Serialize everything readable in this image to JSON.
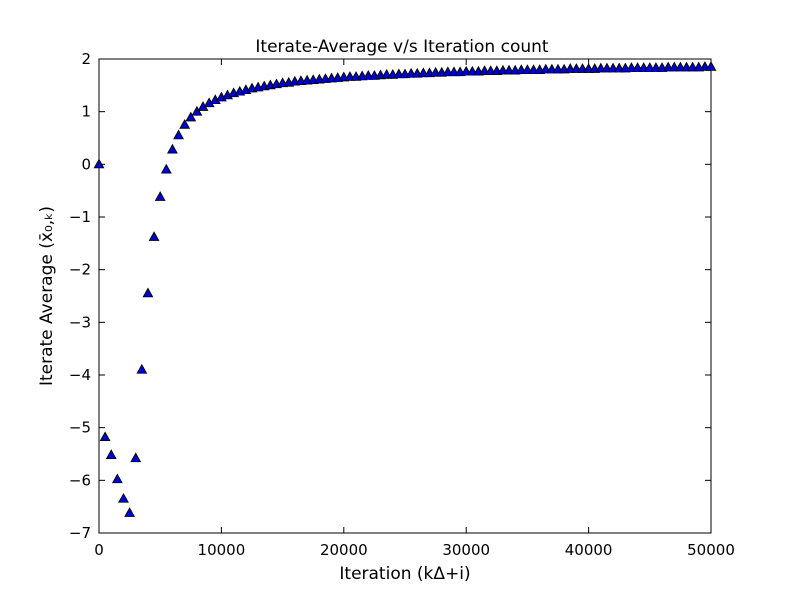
{
  "chart_data": {
    "type": "scatter",
    "title": "Iterate-Average v/s Iteration count",
    "xlabel": "Iteration (kΔ+i)",
    "ylabel": "Iterate Average (x̄₀,ₖ)",
    "xlim": [
      0,
      50000
    ],
    "ylim": [
      -7,
      2
    ],
    "x_ticks": [
      0,
      10000,
      20000,
      30000,
      40000,
      50000
    ],
    "y_ticks": [
      2,
      1,
      0,
      -1,
      -2,
      -3,
      -4,
      -5,
      -6,
      -7
    ],
    "x_tick_labels": [
      "0",
      "10000",
      "20000",
      "30000",
      "40000",
      "50000"
    ],
    "y_tick_labels": [
      "2",
      "1",
      "0",
      "−1",
      "−2",
      "−3",
      "−4",
      "−5",
      "−6",
      "−7"
    ],
    "grid": false,
    "marker": "triangle",
    "marker_color": "#0000cc",
    "series": [
      {
        "x": [
          0,
          500,
          1000,
          1500,
          2000,
          2500,
          3000,
          3500,
          4000,
          4500,
          5000,
          5500,
          6000,
          6500,
          7000,
          7500,
          8000,
          8500,
          9000,
          9500,
          10000,
          10500,
          11000,
          11500,
          12000,
          12500,
          13000,
          13500,
          14000,
          14500,
          15000,
          15500,
          16000,
          16500,
          17000,
          17500,
          18000,
          18500,
          19000,
          19500,
          20000,
          20500,
          21000,
          21500,
          22000,
          22500,
          23000,
          23500,
          24000,
          24500,
          25000,
          25500,
          26000,
          26500,
          27000,
          27500,
          28000,
          28500,
          29000,
          29500,
          30000,
          30500,
          31000,
          31500,
          32000,
          32500,
          33000,
          33500,
          34000,
          34500,
          35000,
          35500,
          36000,
          36500,
          37000,
          37500,
          38000,
          38500,
          39000,
          39500,
          40000,
          40500,
          41000,
          41500,
          42000,
          42500,
          43000,
          43500,
          44000,
          44500,
          45000,
          45500,
          46000,
          46500,
          47000,
          47500,
          48000,
          48500,
          49000,
          49500,
          50000
        ],
        "y": [
          0.0,
          -5.18,
          -5.52,
          -5.98,
          -6.35,
          -6.62,
          -5.58,
          -3.9,
          -2.45,
          -1.38,
          -0.62,
          -0.1,
          0.28,
          0.55,
          0.75,
          0.89,
          1.0,
          1.09,
          1.16,
          1.22,
          1.27,
          1.31,
          1.35,
          1.38,
          1.41,
          1.44,
          1.46,
          1.48,
          1.5,
          1.52,
          1.54,
          1.55,
          1.57,
          1.58,
          1.59,
          1.6,
          1.61,
          1.62,
          1.63,
          1.64,
          1.65,
          1.66,
          1.66,
          1.67,
          1.68,
          1.68,
          1.69,
          1.7,
          1.7,
          1.71,
          1.71,
          1.72,
          1.72,
          1.73,
          1.73,
          1.74,
          1.74,
          1.75,
          1.75,
          1.75,
          1.76,
          1.76,
          1.76,
          1.77,
          1.77,
          1.77,
          1.78,
          1.78,
          1.78,
          1.79,
          1.79,
          1.79,
          1.79,
          1.8,
          1.8,
          1.8,
          1.8,
          1.81,
          1.81,
          1.81,
          1.81,
          1.81,
          1.82,
          1.82,
          1.82,
          1.82,
          1.82,
          1.83,
          1.83,
          1.83,
          1.83,
          1.83,
          1.83,
          1.84,
          1.84,
          1.84,
          1.84,
          1.84,
          1.84,
          1.85,
          1.85
        ]
      }
    ]
  }
}
